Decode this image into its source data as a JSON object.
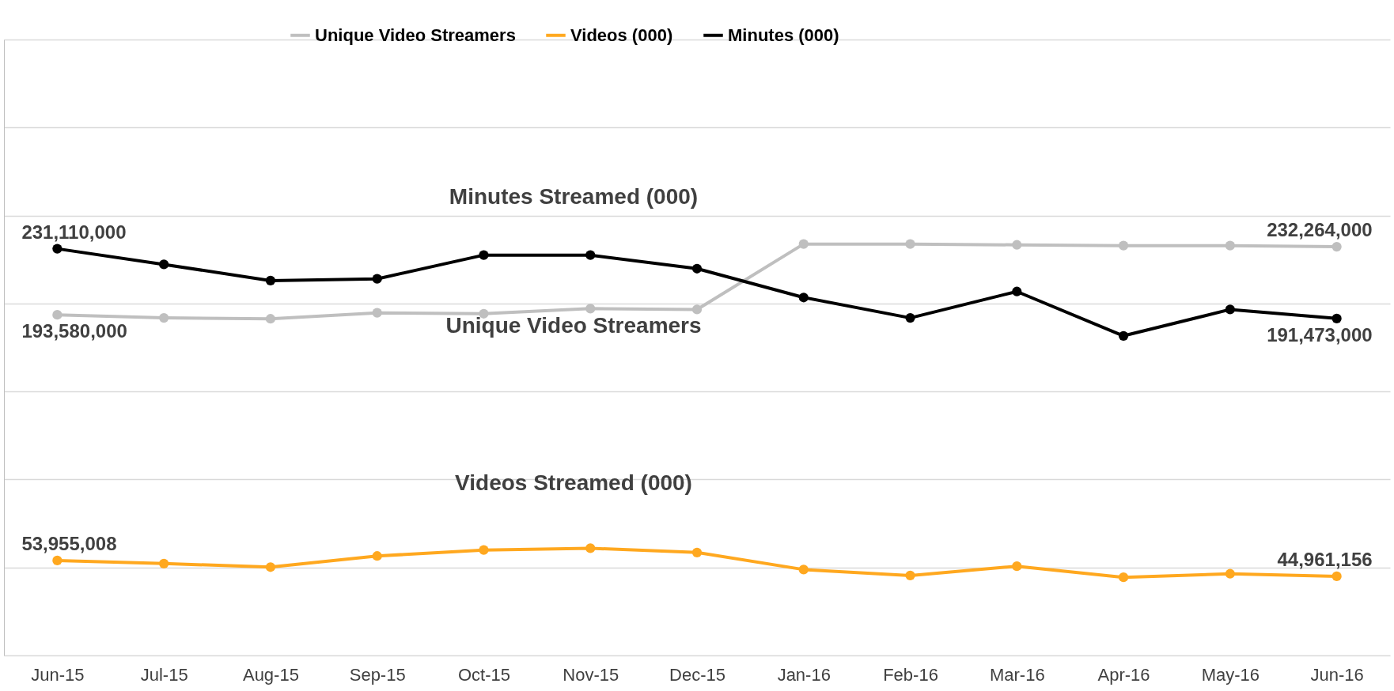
{
  "chart_data": {
    "type": "line",
    "categories": [
      "Jun-15",
      "Jul-15",
      "Aug-15",
      "Sep-15",
      "Oct-15",
      "Nov-15",
      "Dec-15",
      "Jan-16",
      "Feb-16",
      "Mar-16",
      "Apr-16",
      "May-16",
      "Jun-16"
    ],
    "series": [
      {
        "name": "Unique Video Streamers",
        "color": "#bfbfbf",
        "values": [
          193580000,
          191800000,
          191300000,
          194700000,
          194200000,
          197100000,
          196600000,
          233800000,
          233800000,
          233300000,
          232900000,
          232900000,
          232264000
        ],
        "value_labels": [
          "193,580,000",
          null,
          null,
          null,
          null,
          null,
          null,
          null,
          null,
          null,
          null,
          null,
          "232,264,000"
        ]
      },
      {
        "name": "Videos (000)",
        "color": "#ffa81f",
        "values": [
          53955008,
          52200000,
          50200000,
          56500000,
          59900000,
          60900000,
          58500000,
          48800000,
          45400000,
          50700000,
          44400000,
          46400000,
          44961156
        ],
        "value_labels": [
          "53,955,008",
          null,
          null,
          null,
          null,
          null,
          null,
          null,
          null,
          null,
          null,
          null,
          "44,961,156"
        ]
      },
      {
        "name": "Minutes (000)",
        "color": "#000000",
        "values": [
          231110000,
          222200000,
          213000000,
          214000000,
          227500000,
          227500000,
          219800000,
          203400000,
          191800000,
          206800000,
          181600000,
          196600000,
          191473000
        ],
        "value_labels": [
          "231,110,000",
          null,
          null,
          null,
          null,
          null,
          null,
          null,
          null,
          null,
          null,
          null,
          "191,473,000"
        ]
      }
    ],
    "annotations": [
      "Minutes Streamed (000)",
      "Unique Video Streamers",
      "Videos Streamed (000)"
    ],
    "ylim": [
      0,
      350000000
    ],
    "yticks": [
      {
        "value": 0,
        "label": null
      },
      {
        "value": 50000000,
        "label": null
      },
      {
        "value": 100000000,
        "label": null
      },
      {
        "value": 150000000,
        "label": null
      },
      {
        "value": 200000000,
        "label": null
      },
      {
        "value": 250000000,
        "label": null
      },
      {
        "value": 300000000,
        "label": null
      },
      {
        "value": 350000000,
        "label": null
      }
    ],
    "tick_labels": "x",
    "grid": "y",
    "legend": "top",
    "marker": "circle",
    "line_style": "solid"
  }
}
